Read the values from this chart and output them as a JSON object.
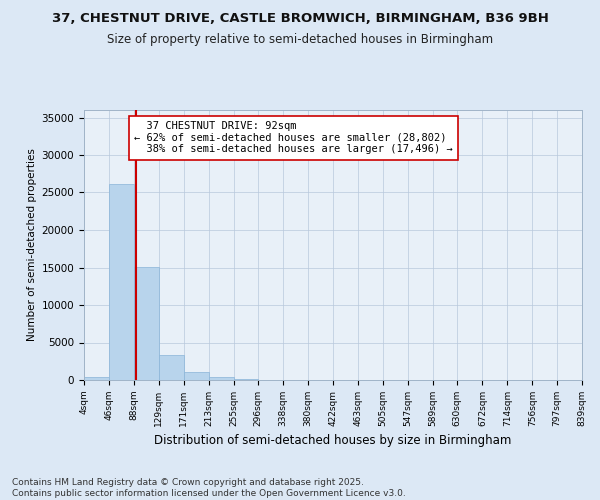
{
  "title1": "37, CHESTNUT DRIVE, CASTLE BROMWICH, BIRMINGHAM, B36 9BH",
  "title2": "Size of property relative to semi-detached houses in Birmingham",
  "xlabel": "Distribution of semi-detached houses by size in Birmingham",
  "ylabel": "Number of semi-detached properties",
  "footnote": "Contains HM Land Registry data © Crown copyright and database right 2025.\nContains public sector information licensed under the Open Government Licence v3.0.",
  "property_label": "37 CHESTNUT DRIVE: 92sqm",
  "pct_smaller": 62,
  "pct_larger": 38,
  "n_smaller": 28802,
  "n_larger": 17496,
  "bin_edges": [
    4,
    46,
    88,
    129,
    171,
    213,
    255,
    296,
    338,
    380,
    422,
    463,
    505,
    547,
    589,
    630,
    672,
    714,
    756,
    797,
    839
  ],
  "bin_labels": [
    "4sqm",
    "46sqm",
    "88sqm",
    "129sqm",
    "171sqm",
    "213sqm",
    "255sqm",
    "296sqm",
    "338sqm",
    "380sqm",
    "422sqm",
    "463sqm",
    "505sqm",
    "547sqm",
    "589sqm",
    "630sqm",
    "672sqm",
    "714sqm",
    "756sqm",
    "797sqm",
    "839sqm"
  ],
  "bar_heights": [
    400,
    26100,
    15100,
    3400,
    1050,
    450,
    150,
    50,
    20,
    10,
    8,
    5,
    3,
    2,
    1,
    1,
    1,
    0,
    0,
    0
  ],
  "bar_color": "#b8d4ec",
  "bar_edge_color": "#8ab4d8",
  "vline_color": "#cc0000",
  "vline_x": 92,
  "annotation_box_color": "#ffffff",
  "annotation_box_edge": "#cc0000",
  "bg_color": "#dce8f5",
  "plot_bg_color": "#e8f0f8",
  "ylim": [
    0,
    36000
  ],
  "yticks": [
    0,
    5000,
    10000,
    15000,
    20000,
    25000,
    30000,
    35000
  ],
  "title1_fontsize": 9.5,
  "title2_fontsize": 8.5,
  "xlabel_fontsize": 8.5,
  "ylabel_fontsize": 7.5,
  "tick_fontsize": 7.5,
  "xtick_fontsize": 6.5,
  "footnote_fontsize": 6.5,
  "annot_fontsize": 7.5
}
